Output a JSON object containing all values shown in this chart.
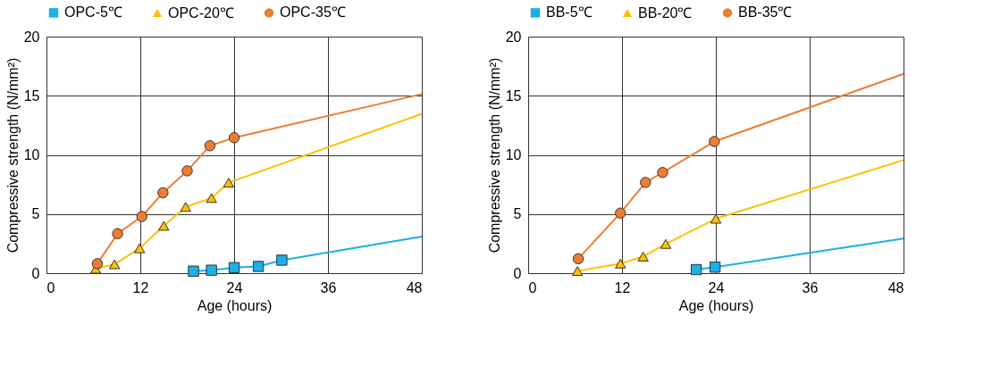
{
  "chart_data": [
    {
      "type": "line",
      "xlabel": "Age (hours)",
      "ylabel": "Compressive strength (N/mm²)",
      "xlim": [
        0,
        48
      ],
      "xticks": [
        0,
        12,
        24,
        36,
        48
      ],
      "ylim": [
        0,
        20
      ],
      "yticks": [
        0,
        5,
        10,
        15,
        20
      ],
      "grid": true,
      "legend": "top",
      "line_style": "solid",
      "series": [
        {
          "name": "OPC-5℃",
          "color": "#1ab0e8",
          "marker": "square",
          "x": [
            18.8,
            21.1,
            24.0,
            27.1,
            30.1
          ],
          "values": [
            0.17,
            0.25,
            0.47,
            0.57,
            1.1
          ]
        },
        {
          "name": "OPC-20℃",
          "color": "#ffc000",
          "marker": "triangle",
          "x": [
            6.3,
            8.7,
            11.9,
            15.0,
            17.8,
            21.1,
            23.3
          ],
          "values": [
            0.37,
            0.75,
            2.1,
            4.0,
            5.6,
            6.35,
            7.65
          ]
        },
        {
          "name": "OPC-35℃",
          "color": "#ed7d31",
          "marker": "circle",
          "x": [
            6.5,
            9.1,
            12.2,
            14.9,
            18.0,
            20.9,
            24.0
          ],
          "values": [
            0.8,
            3.34,
            4.79,
            6.8,
            8.65,
            10.77,
            11.45
          ]
        },
        {
          "type": "line",
          "color": "#1ab0e8",
          "marker": "none",
          "x": [
            30.1,
            48
          ],
          "values": [
            1.1,
            3.09
          ]
        },
        {
          "type": "line",
          "color": "#ffc000",
          "marker": "none",
          "x": [
            23.3,
            48
          ],
          "values": [
            7.65,
            13.47
          ]
        },
        {
          "type": "line",
          "color": "#ed7d31",
          "marker": "none",
          "x": [
            24.0,
            48
          ],
          "values": [
            11.45,
            15.14
          ]
        }
      ]
    },
    {
      "type": "line",
      "xlabel": "Age (hours)",
      "ylabel": "Compressive strength (N/mm²)",
      "xlim": [
        0,
        48
      ],
      "xticks": [
        0,
        12,
        24,
        36,
        48
      ],
      "ylim": [
        0,
        20
      ],
      "yticks": [
        0,
        5,
        10,
        15,
        20
      ],
      "grid": true,
      "legend": "top",
      "line_style": "solid",
      "series": [
        {
          "name": "BB-5℃",
          "color": "#1ab0e8",
          "marker": "square",
          "x": [
            21.5,
            23.9
          ],
          "values": [
            0.3,
            0.51
          ]
        },
        {
          "name": "BB-20℃",
          "color": "#ffc000",
          "marker": "triangle",
          "x": [
            6.3,
            11.8,
            14.7,
            17.6,
            24.0
          ],
          "values": [
            0.18,
            0.81,
            1.4,
            2.47,
            4.6
          ]
        },
        {
          "name": "BB-35℃",
          "color": "#ed7d31",
          "marker": "circle",
          "x": [
            6.4,
            11.8,
            15.0,
            17.2,
            23.8
          ],
          "values": [
            1.22,
            5.08,
            7.67,
            8.51,
            11.13
          ]
        },
        {
          "type": "line",
          "color": "#1ab0e8",
          "marker": "none",
          "x": [
            23.9,
            48
          ],
          "values": [
            0.51,
            2.92
          ]
        },
        {
          "type": "line",
          "color": "#ffc000",
          "marker": "none",
          "x": [
            24.0,
            48
          ],
          "values": [
            4.6,
            9.56
          ]
        },
        {
          "type": "line",
          "color": "#ed7d31",
          "marker": "none",
          "x": [
            23.8,
            48
          ],
          "values": [
            11.13,
            16.85
          ]
        }
      ]
    }
  ]
}
